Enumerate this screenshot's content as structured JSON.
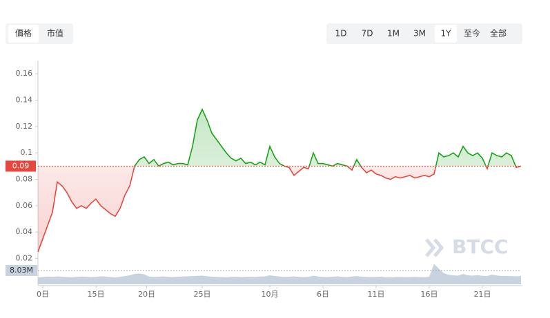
{
  "tabs": {
    "left": [
      "價格",
      "市值"
    ],
    "left_active": 0,
    "right": [
      "1D",
      "7D",
      "1M",
      "3M",
      "1Y",
      "至今",
      "全部"
    ],
    "right_active": 4
  },
  "watermark": "BTCC",
  "chart_data": {
    "type": "line",
    "x": [
      0,
      1,
      2,
      3,
      4,
      5,
      6,
      7,
      8,
      9,
      10,
      11,
      12,
      13,
      14,
      15,
      16,
      17,
      18,
      19,
      20,
      21,
      22,
      23,
      24,
      25,
      26,
      27,
      28,
      29,
      30,
      31,
      32,
      33,
      34,
      35,
      36,
      37,
      38,
      39,
      40,
      41,
      42,
      43,
      44,
      45,
      46,
      47,
      48,
      49,
      50,
      51,
      52,
      53,
      54,
      55,
      56,
      57,
      58,
      59,
      60,
      61,
      62,
      63,
      64,
      65,
      66,
      67,
      68,
      69,
      70,
      71,
      72,
      73,
      74,
      75,
      76,
      77,
      78,
      79,
      80,
      81,
      82,
      83,
      84,
      85,
      86,
      87,
      88,
      89,
      90,
      91,
      92,
      93,
      94,
      95,
      96,
      97,
      98,
      99,
      100
    ],
    "series": [
      {
        "values": [
          0.025,
          0.035,
          0.045,
          0.055,
          0.078,
          0.075,
          0.07,
          0.063,
          0.058,
          0.06,
          0.058,
          0.062,
          0.065,
          0.06,
          0.057,
          0.054,
          0.052,
          0.058,
          0.068,
          0.075,
          0.09,
          0.095,
          0.097,
          0.092,
          0.095,
          0.09,
          0.092,
          0.093,
          0.091,
          0.092,
          0.092,
          0.091,
          0.105,
          0.125,
          0.133,
          0.125,
          0.115,
          0.11,
          0.105,
          0.1,
          0.096,
          0.094,
          0.096,
          0.092,
          0.093,
          0.091,
          0.093,
          0.091,
          0.105,
          0.097,
          0.092,
          0.09,
          0.089,
          0.083,
          0.086,
          0.089,
          0.088,
          0.1,
          0.092,
          0.092,
          0.091,
          0.09,
          0.092,
          0.091,
          0.09,
          0.087,
          0.095,
          0.089,
          0.085,
          0.087,
          0.084,
          0.083,
          0.081,
          0.08,
          0.082,
          0.081,
          0.082,
          0.083,
          0.081,
          0.082,
          0.083,
          0.082,
          0.084,
          0.1,
          0.097,
          0.098,
          0.1,
          0.097,
          0.105,
          0.1,
          0.098,
          0.1,
          0.096,
          0.088,
          0.1,
          0.098,
          0.097,
          0.1,
          0.098,
          0.089,
          0.09
        ],
        "color_up": "#1aa01a",
        "color_down": "#e5483f"
      }
    ],
    "reference": 0.09,
    "xlim": [
      0,
      100
    ],
    "xticks": [
      {
        "value": 1,
        "label": "0日"
      },
      {
        "value": 12,
        "label": "15日"
      },
      {
        "value": 22.5,
        "label": "20日"
      },
      {
        "value": 34,
        "label": "25日"
      },
      {
        "value": 48,
        "label": "10月"
      },
      {
        "value": 59,
        "label": "6日"
      },
      {
        "value": 70,
        "label": "11日"
      },
      {
        "value": 81,
        "label": "16日"
      },
      {
        "value": 92,
        "label": "21日"
      }
    ],
    "ylim": [
      0.013,
      0.17
    ],
    "yticks": [
      0.02,
      0.04,
      0.06,
      0.08,
      0.1,
      0.12,
      0.14,
      0.16
    ],
    "volume": {
      "values": [
        4000000,
        4200000,
        4500000,
        4300000,
        4600000,
        4400000,
        4200000,
        4100000,
        4300000,
        4500000,
        4400000,
        4200000,
        4300000,
        4600000,
        4500000,
        4200000,
        4000000,
        4300000,
        4800000,
        5200000,
        6000000,
        6200000,
        5800000,
        4500000,
        4300000,
        4400000,
        4600000,
        4300000,
        4200000,
        4400000,
        4500000,
        4600000,
        4800000,
        4900000,
        5000000,
        4700000,
        4400000,
        4300000,
        4200000,
        4100000,
        4300000,
        4400000,
        4200000,
        4300000,
        4400000,
        4300000,
        4500000,
        4600000,
        5200000,
        4800000,
        4500000,
        4300000,
        4400000,
        4600000,
        4300000,
        4200000,
        4300000,
        5000000,
        4500000,
        4300000,
        4200000,
        4400000,
        4600000,
        4300000,
        4200000,
        4500000,
        4800000,
        4400000,
        4300000,
        4200000,
        4300000,
        4400000,
        4100000,
        4000000,
        4200000,
        4300000,
        4100000,
        4200000,
        4300000,
        4200000,
        4100000,
        4400000,
        11800000,
        9000000,
        6500000,
        5500000,
        5200000,
        5000000,
        6000000,
        5200000,
        5000000,
        5300000,
        4900000,
        4800000,
        5600000,
        5100000,
        4800000,
        4900000,
        4700000,
        4600000,
        4800000
      ],
      "color": "#c9d2df",
      "lim": [
        0,
        16000000
      ],
      "marker": {
        "value": 8030000,
        "label": "8.03M"
      }
    }
  }
}
